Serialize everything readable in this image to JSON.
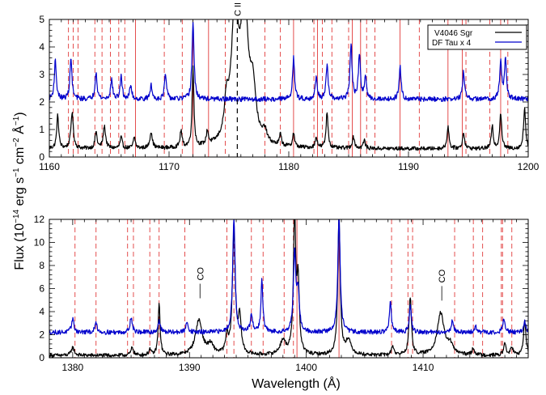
{
  "chart_data": [
    {
      "type": "line",
      "panel": "top",
      "xlim": [
        1160,
        1200
      ],
      "ylim": [
        0,
        5
      ],
      "xticks": [
        1160,
        1170,
        1180,
        1190,
        1200
      ],
      "yticks": [
        0,
        1,
        2,
        3,
        4,
        5
      ],
      "xlabel": "",
      "ylabel": "",
      "grid": false,
      "legend": {
        "placement": "top-right",
        "entries": [
          "V4046 Sgr",
          "DF Tau x 4"
        ]
      },
      "series": [
        {
          "name": "V4046 Sgr",
          "color": "#000000",
          "baseline": 0.3,
          "peaks": [
            [
              1160.7,
              1.2,
              0.1
            ],
            [
              1161.9,
              1.3,
              0.12
            ],
            [
              1163.9,
              0.6,
              0.1
            ],
            [
              1164.6,
              0.8,
              0.12
            ],
            [
              1166.0,
              0.4,
              0.1
            ],
            [
              1167.1,
              0.4,
              0.1
            ],
            [
              1168.5,
              0.6,
              0.12
            ],
            [
              1171.0,
              0.6,
              0.1
            ],
            [
              1172.0,
              2.9,
              0.09
            ],
            [
              1173.2,
              0.5,
              0.1
            ],
            [
              1174.8,
              1.2,
              0.2
            ],
            [
              1175.5,
              4.7,
              0.35
            ],
            [
              1176.3,
              5.0,
              0.35
            ],
            [
              1177.0,
              1.8,
              0.3
            ],
            [
              1178.0,
              0.4,
              0.2
            ],
            [
              1179.3,
              0.4,
              0.1
            ],
            [
              1180.4,
              0.5,
              0.1
            ],
            [
              1182.3,
              0.4,
              0.1
            ],
            [
              1183.2,
              1.3,
              0.1
            ],
            [
              1185.4,
              0.4,
              0.12
            ],
            [
              1186.3,
              0.3,
              0.1
            ],
            [
              1193.3,
              0.8,
              0.1
            ],
            [
              1194.6,
              0.6,
              0.1
            ],
            [
              1197.0,
              0.8,
              0.1
            ],
            [
              1197.7,
              1.3,
              0.1
            ],
            [
              1199.7,
              1.5,
              0.1
            ]
          ]
        },
        {
          "name": "DF Tau x 4",
          "color": "#0000cc",
          "baseline": 2.1,
          "peaks": [
            [
              1160.5,
              1.4,
              0.1
            ],
            [
              1161.8,
              1.5,
              0.1
            ],
            [
              1163.9,
              1.0,
              0.1
            ],
            [
              1165.2,
              0.7,
              0.1
            ],
            [
              1166.0,
              0.8,
              0.1
            ],
            [
              1166.8,
              0.5,
              0.1
            ],
            [
              1168.5,
              0.5,
              0.1
            ],
            [
              1169.7,
              0.9,
              0.1
            ],
            [
              1172.0,
              2.8,
              0.1
            ],
            [
              1180.4,
              1.5,
              0.1
            ],
            [
              1182.3,
              0.8,
              0.1
            ],
            [
              1183.2,
              1.2,
              0.1
            ],
            [
              1185.2,
              2.0,
              0.1
            ],
            [
              1185.9,
              1.6,
              0.1
            ],
            [
              1186.4,
              0.8,
              0.1
            ],
            [
              1189.3,
              1.2,
              0.1
            ],
            [
              1194.6,
              1.0,
              0.1
            ],
            [
              1197.7,
              1.4,
              0.1
            ],
            [
              1198.1,
              1.4,
              0.1
            ]
          ]
        }
      ],
      "reference_lines": {
        "color": "#dd2222",
        "solid": [
          1167.2,
          1172.0,
          1173.3,
          1180.4,
          1182.4,
          1185.3,
          1186.0,
          1189.3,
          1193.3,
          1194.5,
          1197.7
        ],
        "dashed": [
          1161.6,
          1162.0,
          1162.4,
          1163.8,
          1164.4,
          1165.1,
          1165.8,
          1166.3,
          1169.6,
          1171.1,
          1174.7,
          1178.0,
          1179.3,
          1182.1,
          1182.8,
          1183.6,
          1185.0,
          1186.5,
          1187.2,
          1190.9,
          1194.8,
          1196.8,
          1198.3
        ]
      },
      "annotations": [
        {
          "text": "C II",
          "x": 1175.7,
          "line": "black-dashed"
        }
      ]
    },
    {
      "type": "line",
      "panel": "bottom",
      "xlim": [
        1378,
        1419
      ],
      "ylim": [
        0,
        12
      ],
      "xticks": [
        1380,
        1390,
        1400,
        1410
      ],
      "yticks": [
        0,
        2,
        4,
        6,
        8,
        10,
        12
      ],
      "xlabel": "Wavelength (Å)",
      "ylabel": "",
      "grid": false,
      "series": [
        {
          "name": "V4046 Sgr",
          "color": "#000000",
          "baseline": 0.2,
          "peaks": [
            [
              1380.0,
              0.7,
              0.15
            ],
            [
              1385.1,
              0.7,
              0.12
            ],
            [
              1386.6,
              0.5,
              0.1
            ],
            [
              1387.4,
              4.4,
              0.1
            ],
            [
              1390.8,
              3.0,
              0.35
            ],
            [
              1391.8,
              0.8,
              0.3
            ],
            [
              1393.2,
              1.5,
              0.12
            ],
            [
              1393.8,
              10.5,
              0.15
            ],
            [
              1394.3,
              3.0,
              0.15
            ],
            [
              1398.0,
              1.2,
              0.3
            ],
            [
              1399.0,
              12.0,
              0.12
            ],
            [
              1399.3,
              6.0,
              0.12
            ],
            [
              1402.8,
              12.0,
              0.12
            ],
            [
              1403.6,
              1.2,
              0.3
            ],
            [
              1407.4,
              0.8,
              0.12
            ],
            [
              1408.9,
              5.0,
              0.12
            ],
            [
              1411.5,
              3.6,
              0.35
            ],
            [
              1412.3,
              0.8,
              0.3
            ],
            [
              1414.3,
              0.6,
              0.12
            ],
            [
              1417.0,
              1.0,
              0.12
            ],
            [
              1417.6,
              0.7,
              0.12
            ],
            [
              1418.7,
              3.0,
              0.12
            ]
          ]
        },
        {
          "name": "DF Tau x 4",
          "color": "#0000cc",
          "baseline": 2.2,
          "peaks": [
            [
              1380.0,
              1.2,
              0.12
            ],
            [
              1382.0,
              0.8,
              0.12
            ],
            [
              1385.0,
              1.3,
              0.12
            ],
            [
              1387.4,
              1.0,
              0.12
            ],
            [
              1389.8,
              0.9,
              0.12
            ],
            [
              1393.8,
              10.0,
              0.12
            ],
            [
              1395.3,
              1.4,
              0.12
            ],
            [
              1396.2,
              4.5,
              0.1
            ],
            [
              1399.0,
              7.0,
              0.12
            ],
            [
              1399.3,
              3.5,
              0.12
            ],
            [
              1402.8,
              10.0,
              0.12
            ],
            [
              1407.2,
              2.7,
              0.1
            ],
            [
              1408.9,
              2.5,
              0.1
            ],
            [
              1412.5,
              1.0,
              0.12
            ],
            [
              1414.5,
              0.5,
              0.12
            ],
            [
              1416.9,
              1.1,
              0.12
            ],
            [
              1418.7,
              0.9,
              0.12
            ]
          ]
        }
      ],
      "reference_lines": {
        "color": "#dd2222",
        "solid": [
          1399.2,
          1402.8
        ],
        "dashed": [
          1380.2,
          1382.0,
          1384.7,
          1385.2,
          1386.6,
          1387.4,
          1389.6,
          1393.2,
          1393.8,
          1395.3,
          1396.3,
          1398.1,
          1398.9,
          1407.3,
          1408.7,
          1409.1,
          1412.7,
          1414.3,
          1415.1,
          1416.7,
          1416.8,
          1417.6
        ]
      },
      "annotations": [
        {
          "text": "CO",
          "x": 1390.9,
          "y": 6.7
        },
        {
          "text": "CO",
          "x": 1411.6,
          "y": 6.5
        }
      ]
    }
  ],
  "shared": {
    "ylabel_base": "Flux (10",
    "ylabel_exp1": "−14",
    "ylabel_mid1": " erg s",
    "ylabel_exp2": "−1",
    "ylabel_mid2": " cm",
    "ylabel_exp3": "−2",
    "ylabel_mid3": " Å",
    "ylabel_exp4": "−1",
    "ylabel_end": ")"
  }
}
